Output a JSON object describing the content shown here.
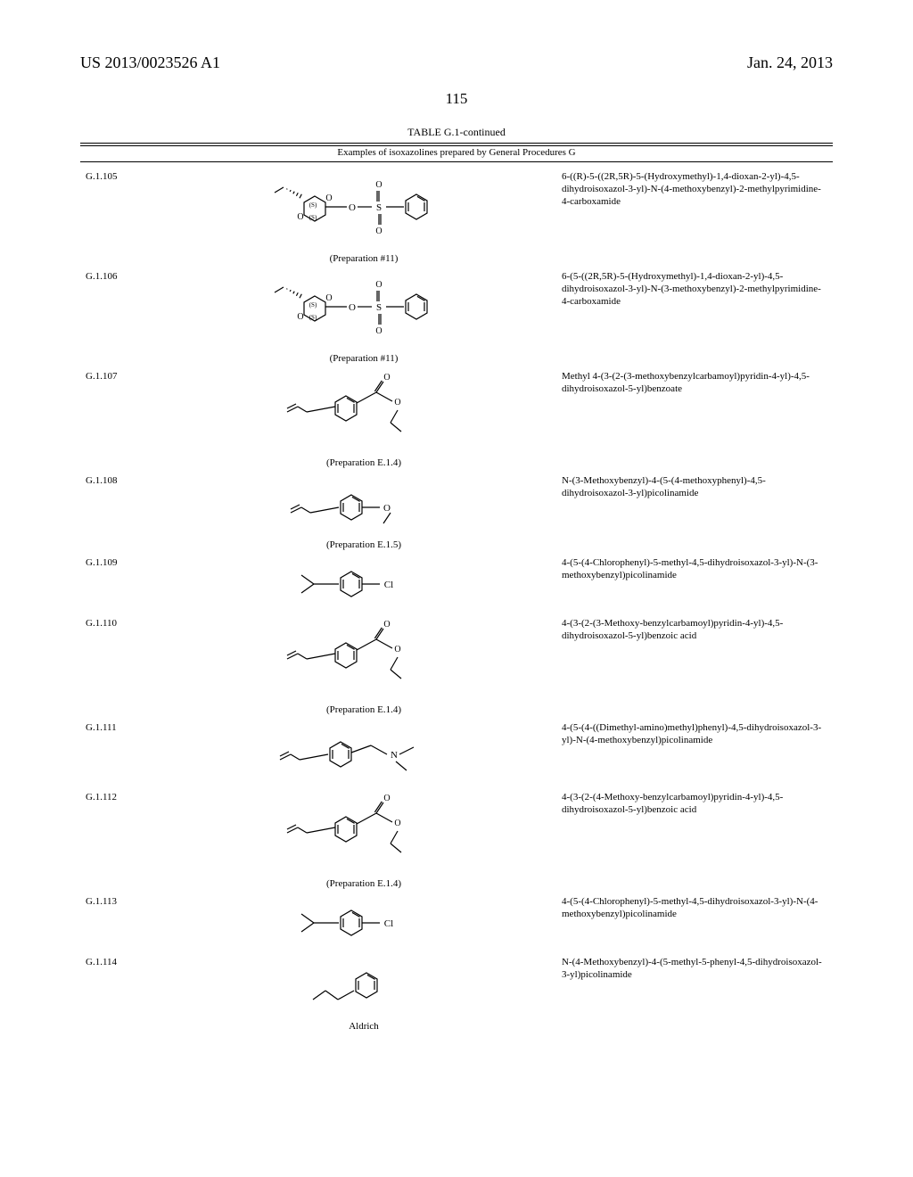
{
  "header": {
    "left": "US 2013/0023526 A1",
    "right": "Jan. 24, 2013"
  },
  "page_number": "115",
  "table": {
    "caption": "TABLE G.1-continued",
    "subtitle": "Examples of isoxazolines prepared by General Procedures G",
    "font_size_body": 11,
    "font_size_header": 18,
    "colors": {
      "text": "#000000",
      "background": "#ffffff",
      "rule": "#000000"
    },
    "rows": [
      {
        "id": "G.1.105",
        "structure_note": "(Preparation #11)",
        "structure_type": "dioxane-sulfonate",
        "name": "6-((R)-5-((2R,5R)-5-(Hydroxymethyl)-1,4-dioxan-2-yl)-4,5-dihydroisoxazol-3-yl)-N-(4-methoxybenzyl)-2-methylpyrimidine-4-carboxamide"
      },
      {
        "id": "G.1.106",
        "structure_note": "(Preparation #11)",
        "structure_type": "dioxane-sulfonate",
        "name": "6-(5-((2R,5R)-5-(Hydroxymethyl)-1,4-dioxan-2-yl)-4,5-dihydroisoxazol-3-yl)-N-(3-methoxybenzyl)-2-methylpyrimidine-4-carboxamide"
      },
      {
        "id": "G.1.107",
        "structure_note": "(Preparation E.1.4)",
        "structure_type": "benzoate-ester",
        "name": "Methyl 4-(3-(2-(3-methoxybenzylcarbamoyl)pyridin-4-yl)-4,5-dihydroisoxazol-5-yl)benzoate"
      },
      {
        "id": "G.1.108",
        "structure_note": "(Preparation E.1.5)",
        "structure_type": "anisole",
        "name": "N-(3-Methoxybenzyl)-4-(5-(4-methoxyphenyl)-4,5-dihydroisoxazol-3-yl)picolinamide"
      },
      {
        "id": "G.1.109",
        "structure_note": "",
        "structure_type": "chloro-methyl",
        "name": "4-(5-(4-Chlorophenyl)-5-methyl-4,5-dihydroisoxazol-3-yl)-N-(3-methoxybenzyl)picolinamide"
      },
      {
        "id": "G.1.110",
        "structure_note": "(Preparation E.1.4)",
        "structure_type": "benzoate-ester",
        "name": "4-(3-(2-(3-Methoxy-benzylcarbamoyl)pyridin-4-yl)-4,5-dihydroisoxazol-5-yl)benzoic acid"
      },
      {
        "id": "G.1.111",
        "structure_note": "",
        "structure_type": "dimethylamine",
        "name": "4-(5-(4-((Dimethyl-amino)methyl)phenyl)-4,5-dihydroisoxazol-3-yl)-N-(4-methoxybenzyl)picolinamide"
      },
      {
        "id": "G.1.112",
        "structure_note": "(Preparation E.1.4)",
        "structure_type": "benzoate-ester",
        "name": "4-(3-(2-(4-Methoxy-benzylcarbamoyl)pyridin-4-yl)-4,5-dihydroisoxazol-5-yl)benzoic acid"
      },
      {
        "id": "G.1.113",
        "structure_note": "",
        "structure_type": "chloro-methyl",
        "name": "4-(5-(4-Chlorophenyl)-5-methyl-4,5-dihydroisoxazol-3-yl)-N-(4-methoxybenzyl)picolinamide"
      },
      {
        "id": "G.1.114",
        "structure_note": "Aldrich",
        "structure_type": "phenyl",
        "name": "N-(4-Methoxybenzyl)-4-(5-methyl-5-phenyl-4,5-dihydroisoxazol-3-yl)picolinamide"
      }
    ]
  },
  "svg_defs": {
    "stroke": "#000000",
    "stroke_width": 1.2,
    "fill": "none"
  }
}
